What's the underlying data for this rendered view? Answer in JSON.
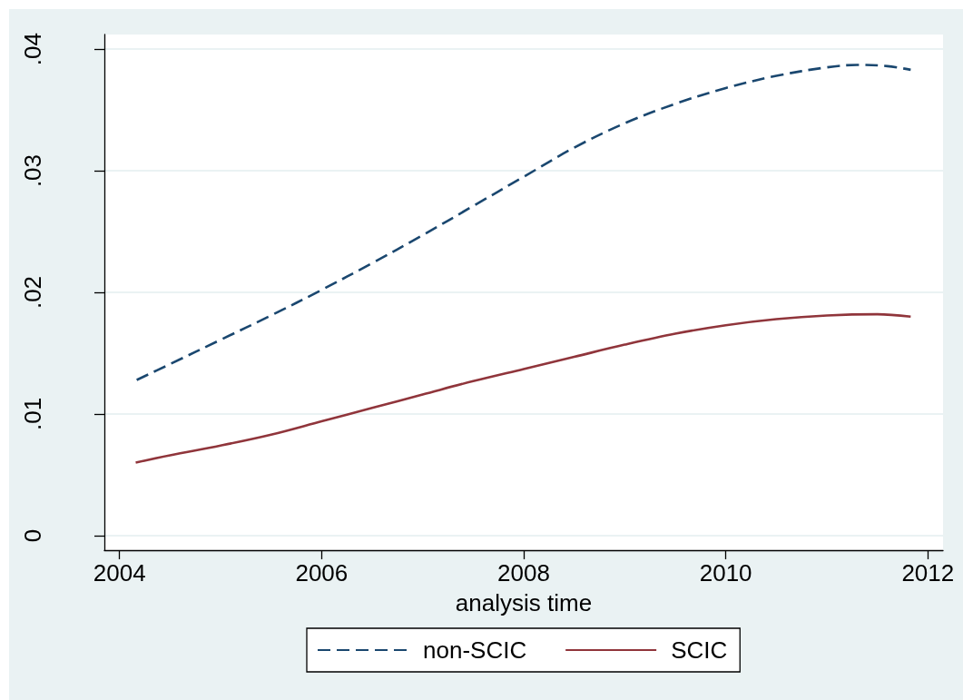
{
  "chart_data": {
    "type": "line",
    "xlabel": "analysis time",
    "xlim": [
      2003.85,
      2012.15
    ],
    "xticks": [
      2004,
      2006,
      2008,
      2010,
      2012
    ],
    "ylim": [
      -0.0012,
      0.0412
    ],
    "yticks": [
      0,
      {
        "value": 0.01,
        "label": ".01"
      },
      {
        "value": 0.02,
        "label": ".02"
      },
      {
        "value": 0.03,
        "label": ".03"
      },
      {
        "value": 0.04,
        "label": ".04"
      }
    ],
    "grid": "y",
    "legend": "bottom",
    "marker": "none",
    "series": [
      {
        "name": "non-SCIC",
        "color": "#1a476f",
        "line_style": "dashed",
        "x": [
          2004.17,
          2004.5,
          2005,
          2005.5,
          2006,
          2006.5,
          2007,
          2007.5,
          2008,
          2008.5,
          2009,
          2009.5,
          2010,
          2010.5,
          2011,
          2011.3,
          2011.6,
          2011.83
        ],
        "values": [
          0.0128,
          0.0141,
          0.0161,
          0.0181,
          0.0202,
          0.0224,
          0.0247,
          0.0271,
          0.0295,
          0.0319,
          0.0339,
          0.0355,
          0.0368,
          0.0378,
          0.0385,
          0.0387,
          0.0386,
          0.0383
        ]
      },
      {
        "name": "SCIC",
        "color": "#90353b",
        "line_style": "solid",
        "x": [
          2004.16,
          2004.5,
          2005,
          2005.5,
          2006,
          2006.5,
          2007,
          2007.5,
          2008,
          2008.5,
          2009,
          2009.5,
          2010,
          2010.5,
          2011,
          2011.5,
          2011.83
        ],
        "values": [
          0.006,
          0.0066,
          0.0074,
          0.0083,
          0.0094,
          0.0105,
          0.0116,
          0.0127,
          0.0137,
          0.0147,
          0.0157,
          0.0166,
          0.0173,
          0.0178,
          0.0181,
          0.0182,
          0.018
        ]
      }
    ]
  }
}
